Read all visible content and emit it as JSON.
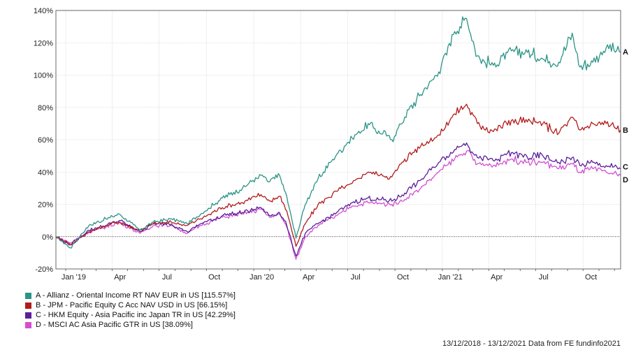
{
  "chart_data": {
    "type": "line",
    "x_ticks": [
      "Jan '19",
      "Apr",
      "Jul",
      "Oct",
      "Jan '20",
      "Apr",
      "Jul",
      "Oct",
      "Jan '21",
      "Apr",
      "Jul",
      "Oct"
    ],
    "y_ticks": [
      "140%",
      "120%",
      "100%",
      "80%",
      "60%",
      "40%",
      "20%",
      "0%",
      "-20%"
    ],
    "ylim": [
      -20,
      140
    ],
    "grid": true,
    "legend_position": "bottom-left",
    "series": [
      {
        "name": "A - Allianz - Oriental Income RT NAV EUR in US [115.57%]",
        "label": "A",
        "color": "#2a9486",
        "x": [
          "2018-12-13",
          "2019-01-10",
          "2019-02-15",
          "2019-03-20",
          "2019-04-15",
          "2019-05-25",
          "2019-06-20",
          "2019-07-25",
          "2019-08-25",
          "2019-09-20",
          "2019-11-01",
          "2019-12-10",
          "2020-01-15",
          "2020-02-01",
          "2020-02-20",
          "2020-03-05",
          "2020-03-23",
          "2020-04-10",
          "2020-05-05",
          "2020-06-10",
          "2020-07-10",
          "2020-08-10",
          "2020-09-25",
          "2020-10-20",
          "2020-11-20",
          "2020-12-25",
          "2021-01-25",
          "2021-02-17",
          "2021-03-10",
          "2021-04-10",
          "2021-05-15",
          "2021-06-15",
          "2021-07-15",
          "2021-08-15",
          "2021-09-10",
          "2021-09-25",
          "2021-10-20",
          "2021-11-15",
          "2021-12-13"
        ],
        "values": [
          0,
          -7,
          7,
          11,
          14,
          4,
          9,
          11,
          8,
          14,
          24,
          30,
          38,
          34,
          38,
          25,
          -1,
          20,
          36,
          51,
          61,
          70,
          60,
          74,
          88,
          102,
          127,
          135,
          112,
          106,
          115,
          114,
          110,
          108,
          126,
          105,
          108,
          117,
          114
        ]
      },
      {
        "name": "B - JPM - Pacific Equity C Acc NAV USD in US [66.15%]",
        "label": "B",
        "color": "#b31b1b",
        "x": [
          "2018-12-13",
          "2019-01-10",
          "2019-02-15",
          "2019-03-20",
          "2019-04-15",
          "2019-05-25",
          "2019-06-20",
          "2019-07-25",
          "2019-08-25",
          "2019-09-20",
          "2019-11-01",
          "2019-12-10",
          "2020-01-15",
          "2020-02-01",
          "2020-02-20",
          "2020-03-05",
          "2020-03-23",
          "2020-04-10",
          "2020-05-05",
          "2020-06-10",
          "2020-07-10",
          "2020-08-10",
          "2020-09-25",
          "2020-10-20",
          "2020-11-20",
          "2020-12-25",
          "2021-01-25",
          "2021-02-17",
          "2021-03-10",
          "2021-04-10",
          "2021-05-15",
          "2021-06-15",
          "2021-07-15",
          "2021-08-15",
          "2021-09-10",
          "2021-09-25",
          "2021-10-20",
          "2021-11-15",
          "2021-12-13"
        ],
        "values": [
          0,
          -5,
          3,
          7,
          9,
          4,
          8,
          9,
          7,
          11,
          18,
          21,
          26,
          22,
          25,
          16,
          -6,
          8,
          20,
          28,
          33,
          40,
          37,
          48,
          56,
          63,
          76,
          82,
          70,
          65,
          72,
          71,
          70,
          64,
          74,
          66,
          70,
          70,
          66
        ]
      },
      {
        "name": "C - HKM Equity - Asia Pacific inc Japan TR in US [42.29%]",
        "label": "C",
        "color": "#5a1f99",
        "x": [
          "2018-12-13",
          "2019-01-10",
          "2019-02-15",
          "2019-03-20",
          "2019-04-15",
          "2019-05-25",
          "2019-06-20",
          "2019-07-25",
          "2019-08-25",
          "2019-09-20",
          "2019-11-01",
          "2019-12-10",
          "2020-01-15",
          "2020-02-01",
          "2020-02-20",
          "2020-03-05",
          "2020-03-23",
          "2020-04-10",
          "2020-05-05",
          "2020-06-10",
          "2020-07-10",
          "2020-08-10",
          "2020-09-25",
          "2020-10-20",
          "2020-11-20",
          "2020-12-25",
          "2021-01-25",
          "2021-02-17",
          "2021-03-10",
          "2021-04-10",
          "2021-05-15",
          "2021-06-15",
          "2021-07-15",
          "2021-08-15",
          "2021-09-10",
          "2021-09-25",
          "2021-10-20",
          "2021-11-15",
          "2021-12-13"
        ],
        "values": [
          0,
          -5,
          4,
          7,
          10,
          3,
          8,
          8,
          3,
          8,
          13,
          15,
          18,
          13,
          15,
          7,
          -12,
          2,
          8,
          15,
          21,
          24,
          22,
          27,
          35,
          46,
          54,
          58,
          49,
          47,
          52,
          49,
          50,
          46,
          49,
          44,
          46,
          44,
          42
        ]
      },
      {
        "name": "D - MSCI AC Asia Pacific GTR in US [38.09%]",
        "label": "D",
        "color": "#d24fd2",
        "x": [
          "2018-12-13",
          "2019-01-10",
          "2019-02-15",
          "2019-03-20",
          "2019-04-15",
          "2019-05-25",
          "2019-06-20",
          "2019-07-25",
          "2019-08-25",
          "2019-09-20",
          "2019-11-01",
          "2019-12-10",
          "2020-01-15",
          "2020-02-01",
          "2020-02-20",
          "2020-03-05",
          "2020-03-23",
          "2020-04-10",
          "2020-05-05",
          "2020-06-10",
          "2020-07-10",
          "2020-08-10",
          "2020-09-25",
          "2020-10-20",
          "2020-11-20",
          "2020-12-25",
          "2021-01-25",
          "2021-02-17",
          "2021-03-10",
          "2021-04-10",
          "2021-05-15",
          "2021-06-15",
          "2021-07-15",
          "2021-08-15",
          "2021-09-10",
          "2021-09-25",
          "2021-10-20",
          "2021-11-15",
          "2021-12-13"
        ],
        "values": [
          0,
          -4,
          3,
          6,
          9,
          2,
          7,
          7,
          2,
          7,
          12,
          14,
          17,
          12,
          14,
          6,
          -14,
          0,
          7,
          13,
          19,
          21,
          20,
          23,
          30,
          40,
          48,
          53,
          45,
          44,
          48,
          46,
          46,
          42,
          45,
          40,
          42,
          40,
          38
        ]
      }
    ]
  },
  "footer": "13/12/2018 - 13/12/2021 Data from FE fundinfo2021"
}
